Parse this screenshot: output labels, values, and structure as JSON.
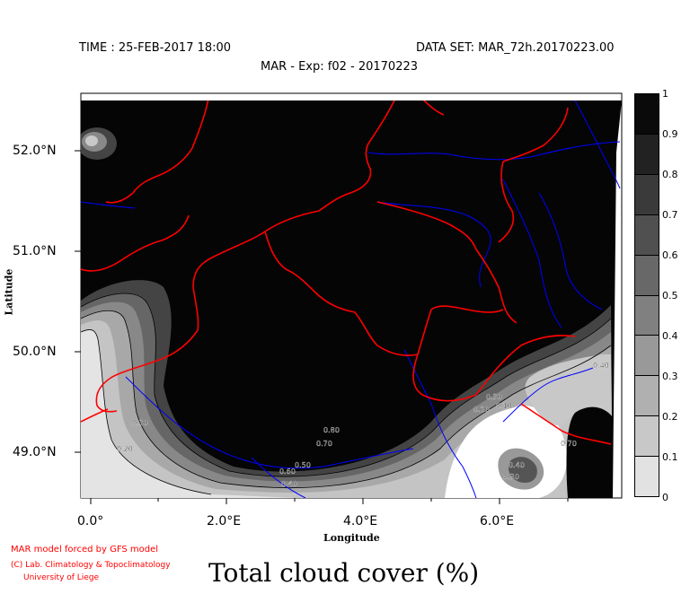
{
  "header": {
    "time": "TIME : 25-FEB-2017 18:00",
    "dataset": "DATA SET: MAR_72h.20170223.00",
    "subtitle": "MAR - Exp: f02 - 20170223"
  },
  "axes": {
    "x_title": "Longitude",
    "y_title": "Latitude",
    "x_ticks": [
      "0.0°",
      "2.0°E",
      "4.0°E",
      "6.0°E"
    ],
    "y_ticks": [
      "52.0°N",
      "51.0°N",
      "50.0°N",
      "49.0°N"
    ]
  },
  "colorbar": {
    "labels": [
      "1",
      "0.9",
      "0.8",
      "0.7",
      "0.6",
      "0.5",
      "0.4",
      "0.3",
      "0.2",
      "0.1",
      "0"
    ],
    "fills": [
      "#0a0a0a",
      "#222222",
      "#3a3a3a",
      "#505050",
      "#686868",
      "#808080",
      "#999999",
      "#b0b0b0",
      "#c8c8c8",
      "#e2e2e2"
    ]
  },
  "contour_labels": [
    "0.30",
    "0.20",
    "0.60",
    "0.50",
    "0.40",
    "0.80",
    "0.70",
    "0.30",
    "0.20",
    "0.10",
    "0.40",
    "0.30",
    "0.70",
    "0.40"
  ],
  "colors": {
    "borders": "#ff0000",
    "rivers": "#0000ff"
  },
  "credits": {
    "line1": "MAR model forced by GFS model",
    "line2": "(C) Lab. Climatology & Topoclimatology",
    "line3": "University of Liege"
  },
  "title": "Total cloud cover (%)"
}
